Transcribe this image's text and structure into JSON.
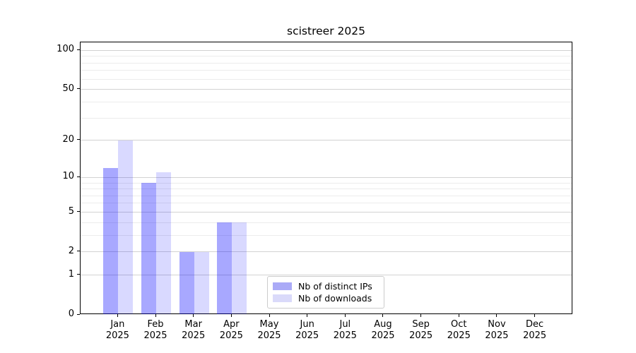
{
  "title": "scistreer 2025",
  "chart_data": {
    "type": "bar",
    "title": "scistreer 2025",
    "categories": [
      "Jan",
      "Feb",
      "Mar",
      "Apr",
      "May",
      "Jun",
      "Jul",
      "Aug",
      "Sep",
      "Oct",
      "Nov",
      "Dec"
    ],
    "category_year": "2025",
    "series": [
      {
        "name": "Nb of distinct IPs",
        "color": "rgba(0,0,255,0.34)",
        "swatch_color": "#aaaaf7",
        "values": [
          12,
          9,
          2,
          4,
          0,
          0,
          0,
          0,
          0,
          0,
          0,
          0
        ]
      },
      {
        "name": "Nb of downloads",
        "color": "rgba(0,0,255,0.15)",
        "swatch_color": "#dadafa",
        "values": [
          20,
          11,
          2,
          4,
          0,
          0,
          0,
          0,
          0,
          0,
          0,
          0
        ]
      }
    ],
    "yscale": "log1p",
    "ylim": [
      0,
      115
    ],
    "yticks": [
      100,
      50,
      20,
      10,
      5,
      2,
      1,
      0
    ],
    "minor_gridlines": [
      3,
      4,
      6,
      7,
      8,
      9,
      30,
      40,
      60,
      70,
      80,
      90
    ],
    "grid": true,
    "legend_position": "lower-center",
    "colors": {
      "major_grid": "#d2d2d2",
      "minor_grid": "#ececec",
      "spine": "#000000",
      "text": "#000000"
    }
  }
}
